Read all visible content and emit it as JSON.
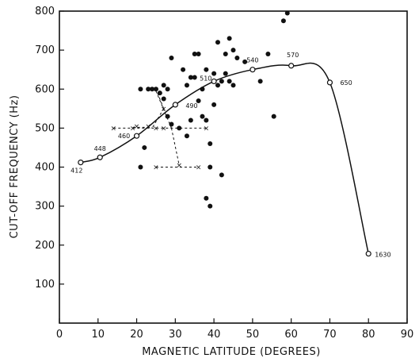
{
  "chart_data": {
    "type": "scatter",
    "xlabel": "MAGNETIC LATITUDE (DEGREES)",
    "ylabel": "CUT-OFF FREQUENCY (Hz)",
    "xlim": [
      0,
      90
    ],
    "ylim": [
      0,
      800
    ],
    "x_ticks": [
      "0",
      "10",
      "20",
      "30",
      "40",
      "50",
      "60",
      "70",
      "80",
      "90"
    ],
    "y_ticks": [
      "100",
      "200",
      "300",
      "400",
      "500",
      "600",
      "700",
      "800"
    ],
    "curve": {
      "points": [
        {
          "x": 5.5,
          "y": 412,
          "label": "412"
        },
        {
          "x": 10.5,
          "y": 425,
          "label": "448"
        },
        {
          "x": 20,
          "y": 480,
          "label": "460"
        },
        {
          "x": 30,
          "y": 560,
          "label": "490"
        },
        {
          "x": 40,
          "y": 620,
          "label": "510"
        },
        {
          "x": 50,
          "y": 650,
          "label": "540"
        },
        {
          "x": 60,
          "y": 660,
          "label": "570"
        },
        {
          "x": 70,
          "y": 617,
          "label": "650"
        },
        {
          "x": 80,
          "y": 178,
          "label": "1630"
        }
      ]
    },
    "filled_points": [
      {
        "x": 21,
        "y": 600
      },
      {
        "x": 21,
        "y": 400
      },
      {
        "x": 22,
        "y": 450
      },
      {
        "x": 23,
        "y": 600
      },
      {
        "x": 24,
        "y": 600
      },
      {
        "x": 25,
        "y": 600
      },
      {
        "x": 26,
        "y": 590
      },
      {
        "x": 27,
        "y": 610
      },
      {
        "x": 27,
        "y": 575
      },
      {
        "x": 28,
        "y": 600
      },
      {
        "x": 28,
        "y": 530
      },
      {
        "x": 29,
        "y": 510
      },
      {
        "x": 29,
        "y": 680
      },
      {
        "x": 31,
        "y": 500
      },
      {
        "x": 32,
        "y": 650
      },
      {
        "x": 33,
        "y": 610
      },
      {
        "x": 33,
        "y": 480
      },
      {
        "x": 34,
        "y": 630
      },
      {
        "x": 34,
        "y": 520
      },
      {
        "x": 35,
        "y": 690
      },
      {
        "x": 35,
        "y": 630
      },
      {
        "x": 36,
        "y": 690
      },
      {
        "x": 36,
        "y": 570
      },
      {
        "x": 37,
        "y": 600
      },
      {
        "x": 37,
        "y": 530
      },
      {
        "x": 38,
        "y": 650
      },
      {
        "x": 38,
        "y": 520
      },
      {
        "x": 38,
        "y": 320
      },
      {
        "x": 39,
        "y": 460
      },
      {
        "x": 39,
        "y": 400
      },
      {
        "x": 39,
        "y": 300
      },
      {
        "x": 40,
        "y": 640
      },
      {
        "x": 40,
        "y": 560
      },
      {
        "x": 41,
        "y": 720
      },
      {
        "x": 41,
        "y": 610
      },
      {
        "x": 42,
        "y": 380
      },
      {
        "x": 42,
        "y": 620
      },
      {
        "x": 43,
        "y": 640
      },
      {
        "x": 43,
        "y": 690
      },
      {
        "x": 44,
        "y": 730
      },
      {
        "x": 44,
        "y": 620
      },
      {
        "x": 45,
        "y": 700
      },
      {
        "x": 45,
        "y": 610
      },
      {
        "x": 46,
        "y": 680
      },
      {
        "x": 48,
        "y": 670
      },
      {
        "x": 52,
        "y": 620
      },
      {
        "x": 54,
        "y": 690
      },
      {
        "x": 55.5,
        "y": 530
      },
      {
        "x": 58,
        "y": 775
      },
      {
        "x": 59,
        "y": 795
      }
    ],
    "error_bars": [
      {
        "y": 500,
        "x0": 14,
        "x1": 38
      },
      {
        "y": 502,
        "x0": 19,
        "x1": 24
      },
      {
        "y": 400,
        "x0": 25,
        "x1": 36
      }
    ],
    "x_markers": [
      {
        "x": 14,
        "y": 500
      },
      {
        "x": 19,
        "y": 500
      },
      {
        "x": 20,
        "y": 505
      },
      {
        "x": 23,
        "y": 505
      },
      {
        "x": 25,
        "y": 500
      },
      {
        "x": 27,
        "y": 500
      },
      {
        "x": 38,
        "y": 500
      },
      {
        "x": 25,
        "y": 400
      },
      {
        "x": 31,
        "y": 405
      },
      {
        "x": 36,
        "y": 400
      },
      {
        "x": 27,
        "y": 550
      }
    ]
  }
}
